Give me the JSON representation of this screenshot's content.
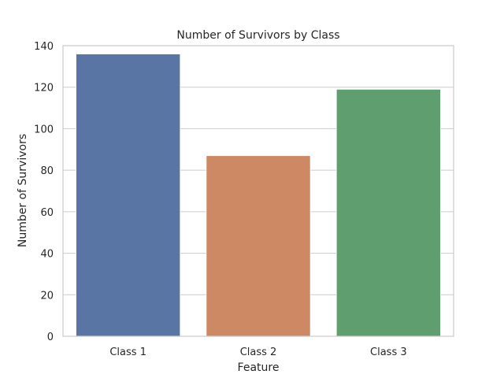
{
  "chart_data": {
    "type": "bar",
    "title": "Number of Survivors by Class",
    "xlabel": "Feature",
    "ylabel": "Number of Survivors",
    "categories": [
      "Class 1",
      "Class 2",
      "Class 3"
    ],
    "values": [
      136,
      87,
      119
    ],
    "colors": [
      "#5975a4",
      "#cc8963",
      "#5f9e6e"
    ],
    "ylim": [
      0,
      140
    ],
    "yticks": [
      0,
      20,
      40,
      60,
      80,
      100,
      120,
      140
    ],
    "grid": true,
    "legend": "none"
  }
}
